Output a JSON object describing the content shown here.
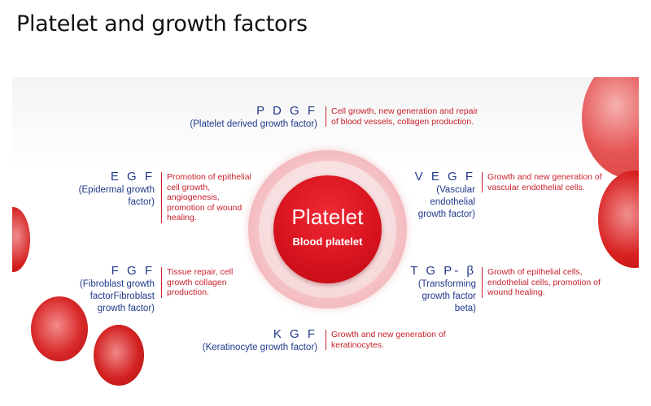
{
  "title": "Platelet and growth factors",
  "center": {
    "title": "Platelet",
    "subtitle": "Blood platelet"
  },
  "factors": {
    "pdgf": {
      "abbr": "P D G F",
      "name": "(Platelet derived growth factor)",
      "desc": "Cell growth, new generation and repair of blood vessels, collagen production."
    },
    "egf": {
      "abbr": "E G F",
      "name": "(Epidermal growth factor)",
      "desc": "Promotion of epithelial cell growth, angiogenesis, promotion of wound healing."
    },
    "vegf": {
      "abbr": "V E G F",
      "name": "(Vascular endothelial growth factor)",
      "desc": "Growth and new generation of vascular endothelial cells."
    },
    "fgf": {
      "abbr": "F G F",
      "name": "(Fibroblast growth factorFibroblast growth factor)",
      "desc": "Tissue repair, cell growth collagen production."
    },
    "tgf": {
      "abbr": "T G P- β",
      "name": "(Transforming growth factor beta)",
      "desc": "Growth of epithelial cells, endothelial cells, promotion of wound healing."
    },
    "kgf": {
      "abbr": "K G F",
      "name": "(Keratinocyte growth factor)",
      "desc": "Growth and new generation of keratinocytes."
    }
  },
  "colors": {
    "factor_name": "#1f3a8a",
    "description": "#c8212a",
    "core": "#d8141f"
  }
}
